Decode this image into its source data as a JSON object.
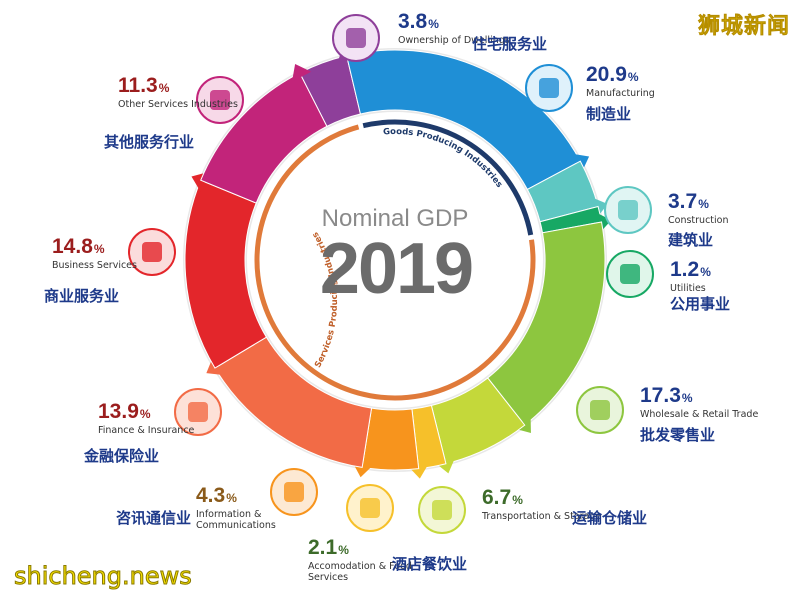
{
  "brand": "狮城新闻",
  "watermark": "shicheng.news",
  "chart_data": {
    "type": "pie",
    "title": "Nominal GDP",
    "year": "2019",
    "inner_labels": [
      "Goods Producing Industries",
      "Services Producing Industries"
    ],
    "unit": "%",
    "slices": [
      {
        "name": "Ownership of Dwellings",
        "name_zh": "住宅服务业",
        "value": 3.8,
        "color": "#8e3f9a",
        "pct_color": "#1e3a8a"
      },
      {
        "name": "Manufacturing",
        "name_zh": "制造业",
        "value": 20.9,
        "color": "#1f8fd6",
        "pct_color": "#1e3a8a"
      },
      {
        "name": "Construction",
        "name_zh": "建筑业",
        "value": 3.7,
        "color": "#5ec7c2",
        "pct_color": "#1e3a8a"
      },
      {
        "name": "Utilities",
        "name_zh": "公用事业",
        "value": 1.2,
        "color": "#17a864",
        "pct_color": "#1e3a8a"
      },
      {
        "name": "Wholesale & Retail Trade",
        "name_zh": "批发零售业",
        "value": 17.3,
        "color": "#8dc63f",
        "pct_color": "#1e3a8a"
      },
      {
        "name": "Transportation & Storage",
        "name_zh": "运输仓储业",
        "value": 6.7,
        "color": "#c4d83a",
        "pct_color": "#3d6b2a"
      },
      {
        "name": "Accomodation & Food Services",
        "name_zh": "酒店餐饮业",
        "value": 2.1,
        "color": "#f6c02a",
        "pct_color": "#3d6b2a"
      },
      {
        "name": "Information & Communications",
        "name_zh": "咨讯通信业",
        "value": 4.3,
        "color": "#f7941d",
        "pct_color": "#8a5a1a"
      },
      {
        "name": "Finance & Insurance",
        "name_zh": "金融保险业",
        "value": 13.9,
        "color": "#f26b46",
        "pct_color": "#9b1d1d"
      },
      {
        "name": "Business Services",
        "name_zh": "商业服务业",
        "value": 14.8,
        "color": "#e3262b",
        "pct_color": "#9b1d1d"
      },
      {
        "name": "Other Services Industries",
        "name_zh": "其他服务行业",
        "value": 11.3,
        "color": "#c2247a",
        "pct_color": "#9b1d1d"
      }
    ]
  },
  "icon_names": [
    "building-icon",
    "factory-icon",
    "crane-icon",
    "lightbulb-icon",
    "store-icon",
    "truck-icon",
    "house-icon",
    "phone-icon",
    "umbrella-dollar-icon",
    "businessman-icon",
    "star-icon"
  ]
}
